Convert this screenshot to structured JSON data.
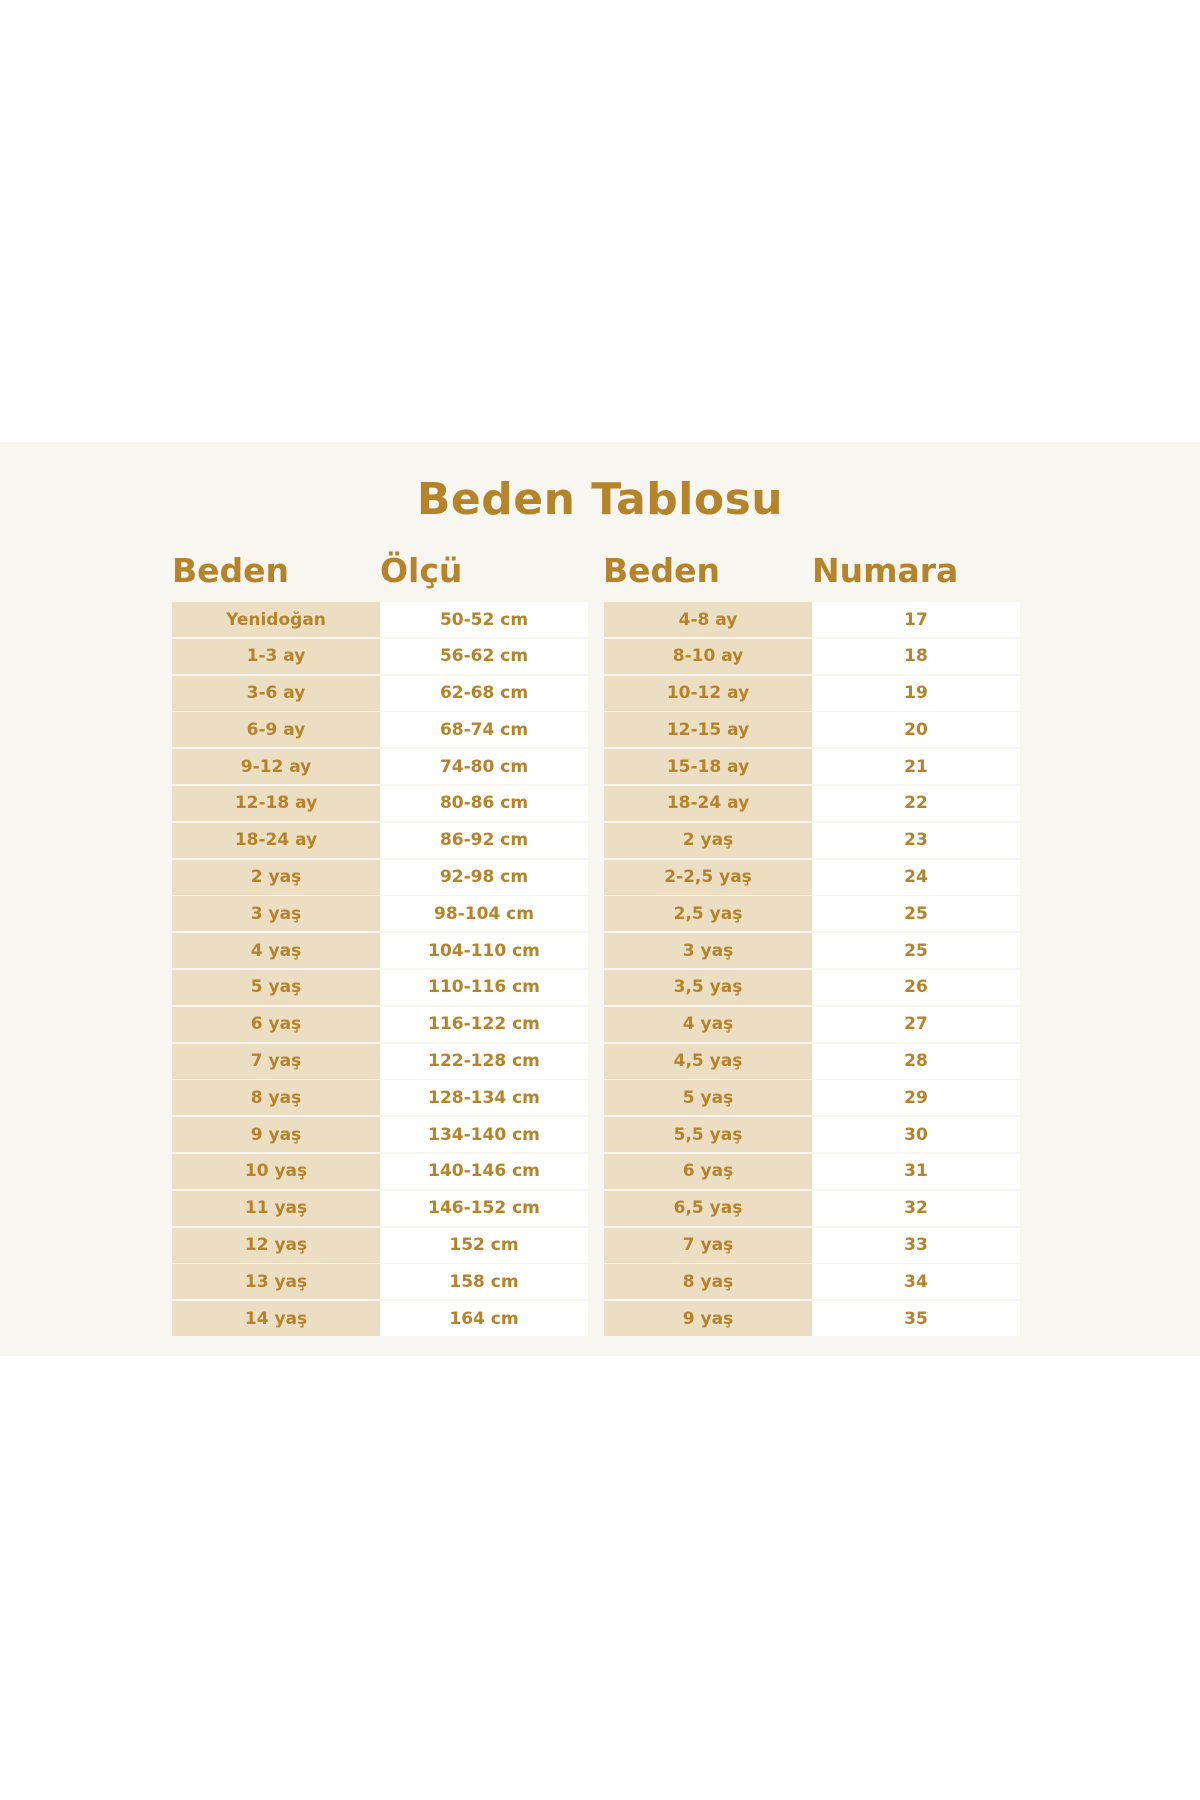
{
  "title": "Beden Tablosu",
  "colors": {
    "text": "#b5832a",
    "band": "#f7f6f1",
    "tan_cell": "#ebdec3",
    "white_cell": "#ffffff"
  },
  "left_table": {
    "headers": [
      "Beden",
      "Ölçü"
    ],
    "rows": [
      [
        "Yenidoğan",
        "50-52 cm"
      ],
      [
        "1-3 ay",
        "56-62 cm"
      ],
      [
        "3-6 ay",
        "62-68 cm"
      ],
      [
        "6-9 ay",
        "68-74 cm"
      ],
      [
        "9-12 ay",
        "74-80 cm"
      ],
      [
        "12-18 ay",
        "80-86 cm"
      ],
      [
        "18-24 ay",
        "86-92 cm"
      ],
      [
        "2 yaş",
        "92-98 cm"
      ],
      [
        "3 yaş",
        "98-104 cm"
      ],
      [
        "4 yaş",
        "104-110 cm"
      ],
      [
        "5 yaş",
        "110-116 cm"
      ],
      [
        "6 yaş",
        "116-122 cm"
      ],
      [
        "7 yaş",
        "122-128 cm"
      ],
      [
        "8 yaş",
        "128-134 cm"
      ],
      [
        "9 yaş",
        "134-140 cm"
      ],
      [
        "10 yaş",
        "140-146 cm"
      ],
      [
        "11 yaş",
        "146-152 cm"
      ],
      [
        "12 yaş",
        "152 cm"
      ],
      [
        "13 yaş",
        "158 cm"
      ],
      [
        "14 yaş",
        "164 cm"
      ]
    ]
  },
  "right_table": {
    "headers": [
      "Beden",
      "Numara"
    ],
    "rows": [
      [
        "4-8 ay",
        "17"
      ],
      [
        "8-10 ay",
        "18"
      ],
      [
        "10-12 ay",
        "19"
      ],
      [
        "12-15 ay",
        "20"
      ],
      [
        "15-18 ay",
        "21"
      ],
      [
        "18-24 ay",
        "22"
      ],
      [
        "2 yaş",
        "23"
      ],
      [
        "2-2,5 yaş",
        "24"
      ],
      [
        "2,5 yaş",
        "25"
      ],
      [
        "3 yaş",
        "25"
      ],
      [
        "3,5 yaş",
        "26"
      ],
      [
        "4 yaş",
        "27"
      ],
      [
        "4,5 yaş",
        "28"
      ],
      [
        "5 yaş",
        "29"
      ],
      [
        "5,5 yaş",
        "30"
      ],
      [
        "6 yaş",
        "31"
      ],
      [
        "6,5 yaş",
        "32"
      ],
      [
        "7 yaş",
        "33"
      ],
      [
        "8 yaş",
        "34"
      ],
      [
        "9 yaş",
        "35"
      ]
    ]
  }
}
